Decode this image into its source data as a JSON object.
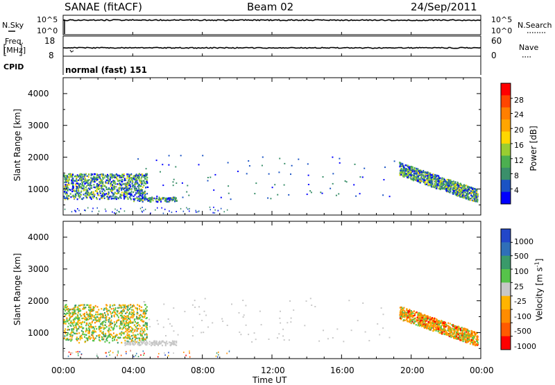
{
  "header": {
    "station": "SANAE (fitACF)",
    "beam": "Beam 02",
    "date": "24/Sep/2011"
  },
  "strips": {
    "nsky": {
      "label": "N.Sky",
      "left_ticks": [
        "10^5",
        "10^0"
      ],
      "right_label": "N.Search",
      "right_ticks": [
        "10^5",
        "10^0"
      ]
    },
    "freq": {
      "label_line1": "Freq.",
      "label_line2": "[MHz]",
      "left_ticks": [
        "18",
        "8"
      ],
      "right_label": "Nave",
      "right_ticks": [
        "60",
        "0"
      ]
    },
    "cpid": {
      "label": "CPID",
      "value": "normal (fast) 151"
    }
  },
  "x_axis": {
    "label": "Time UT",
    "ticks": [
      "00:00",
      "04:00",
      "08:00",
      "12:00",
      "16:00",
      "20:00",
      "00:00"
    ]
  },
  "colors": {
    "power_scale": [
      "#0000ff",
      "#1a53c4",
      "#3a8f6a",
      "#4caf50",
      "#9acd32",
      "#ffd700",
      "#ffa500",
      "#ff7f00",
      "#ff4500",
      "#ff0000"
    ],
    "velocity_scale": [
      "#2247c9",
      "#2f7fb8",
      "#3a9a6a",
      "#56c34a",
      "#c8c8c8",
      "#ffb400",
      "#ff8c00",
      "#ff5a00",
      "#ff0000"
    ]
  },
  "chart_data": [
    {
      "type": "heatmap",
      "name_in_colorbar": "Power [dB]",
      "ylabel": "Slant Range [km]",
      "xlabel": "",
      "x_range_hours": [
        0,
        24
      ],
      "ylim": [
        180,
        4500
      ],
      "y_ticks": [
        "1000",
        "2000",
        "3000",
        "4000"
      ],
      "colorbar": {
        "label": "Power [dB]",
        "ticks": [
          "4",
          "8",
          "12",
          "16",
          "20",
          "24",
          "28"
        ],
        "range": [
          0,
          32
        ]
      },
      "regions": [
        {
          "t0": 0.0,
          "t1": 4.8,
          "r0": 700,
          "r1": 1500,
          "level": 0.35
        },
        {
          "t0": 4.0,
          "t1": 6.5,
          "r0": 620,
          "r1": 760,
          "level": 0.3
        },
        {
          "t0": 19.3,
          "t1": 23.8,
          "r0": 700,
          "r1": 1800,
          "level": 0.4
        }
      ]
    },
    {
      "type": "heatmap",
      "name_in_colorbar": "Velocity [m s^-1]",
      "ylabel": "Slant Range [km]",
      "xlabel": "Time UT",
      "x_range_hours": [
        0,
        24
      ],
      "ylim": [
        180,
        4500
      ],
      "y_ticks": [
        "1000",
        "2000",
        "3000",
        "4000"
      ],
      "colorbar": {
        "label": "Velocity [m s",
        "label_exp": "-1",
        "label_end": "]",
        "ticks": [
          "1000",
          "500",
          "100",
          "25",
          "-25",
          "-100",
          "-500",
          "-1000"
        ]
      },
      "regions": [
        {
          "t0": 0.0,
          "t1": 4.8,
          "r0": 700,
          "r1": 1900,
          "level": -0.2
        },
        {
          "t0": 3.5,
          "t1": 6.5,
          "r0": 620,
          "r1": 760,
          "level": 0.0
        },
        {
          "t0": 19.3,
          "t1": 23.8,
          "r0": 700,
          "r1": 2000,
          "level": -0.3
        }
      ]
    }
  ]
}
